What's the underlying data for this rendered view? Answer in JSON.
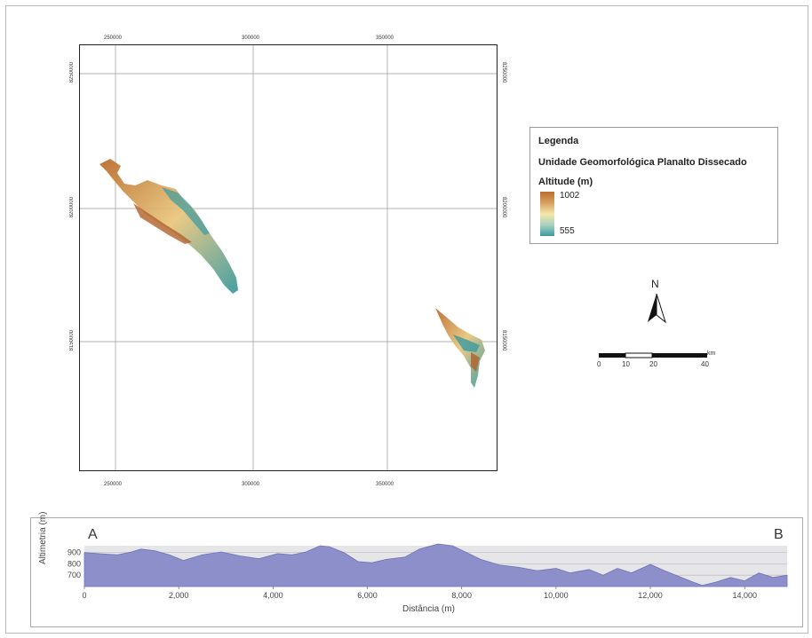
{
  "map": {
    "x_ticks": [
      "250000",
      "300000",
      "350000"
    ],
    "y_ticks": [
      "8250000",
      "8200000",
      "8150000"
    ]
  },
  "legend": {
    "title": "Legenda",
    "unit_name": "Unidade Geomorfológica Planalto Dissecado",
    "attribute": "Altitude (m)",
    "max": "1002",
    "min": "555",
    "colors": {
      "high": "#b96c2c",
      "mid": "#f4e6a8",
      "low": "#3a9aa0"
    }
  },
  "north_arrow": {
    "label": "N"
  },
  "scale_bar": {
    "labels": [
      "0",
      "10",
      "20",
      "40"
    ],
    "unit": "km"
  },
  "profile": {
    "point_start": "A",
    "point_end": "B",
    "ylabel": "Altimetria (m)",
    "xlabel": "Distância (m)",
    "y_ticks": [
      "900",
      "800",
      "700"
    ],
    "x_ticks": [
      "0",
      "2,000",
      "4,000",
      "6,000",
      "8,000",
      "10,000",
      "12,000",
      "14,000"
    ]
  },
  "chart_data": {
    "type": "area",
    "x": [
      0,
      300,
      700,
      1000,
      1200,
      1500,
      1800,
      2100,
      2500,
      2900,
      3300,
      3700,
      4100,
      4400,
      4700,
      5000,
      5200,
      5500,
      5800,
      6100,
      6400,
      6800,
      7100,
      7500,
      7800,
      8100,
      8400,
      8800,
      9200,
      9600,
      10000,
      10300,
      10700,
      11000,
      11300,
      11600,
      12000,
      12300,
      12600,
      12900,
      13100,
      13400,
      13700,
      14000,
      14300,
      14600,
      14900
    ],
    "values": [
      900,
      890,
      880,
      905,
      930,
      915,
      880,
      830,
      880,
      905,
      870,
      845,
      890,
      880,
      905,
      960,
      950,
      900,
      820,
      810,
      840,
      860,
      930,
      975,
      960,
      900,
      840,
      790,
      770,
      740,
      760,
      720,
      750,
      700,
      760,
      720,
      795,
      740,
      690,
      640,
      610,
      640,
      680,
      650,
      720,
      680,
      700
    ],
    "xlabel": "Distância (m)",
    "ylabel": "Altimetria (m)",
    "xlim": [
      0,
      14900
    ],
    "ylim": [
      600,
      960
    ],
    "grid": true
  }
}
